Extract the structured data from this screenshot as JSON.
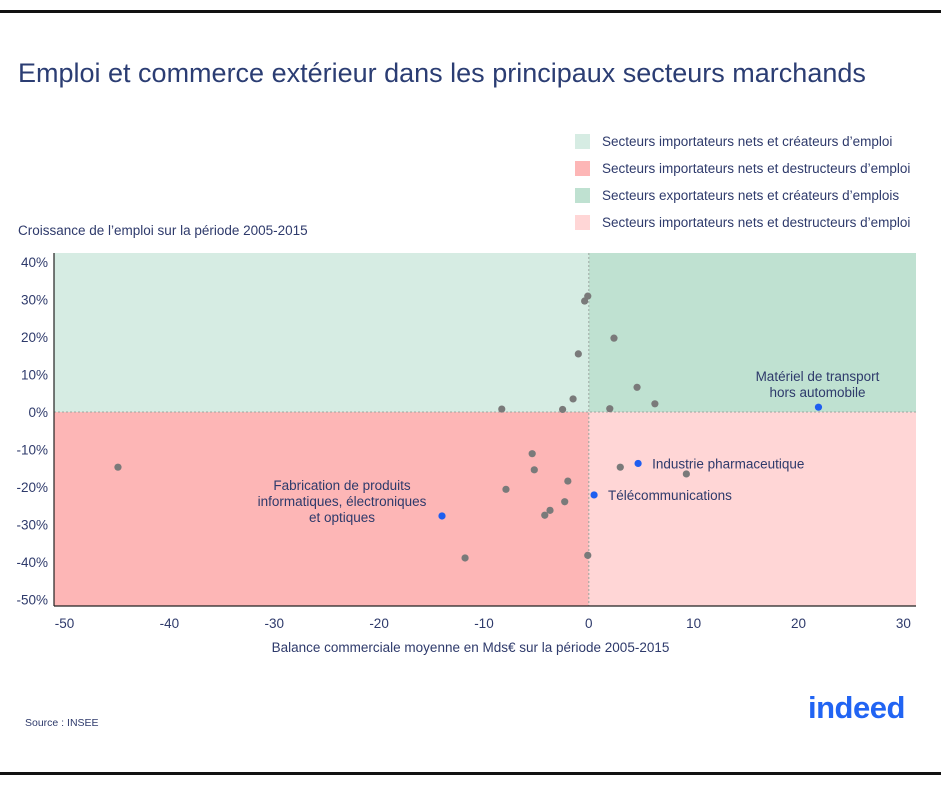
{
  "title": "Emploi et commerce extérieur dans les principaux secteurs marchands",
  "source": "Source : INSEE",
  "logo_text": "indeed",
  "chart_data": {
    "type": "scatter",
    "title": "Emploi et commerce extérieur dans les principaux secteurs marchands",
    "xlabel": "Balance commerciale moyenne en Mds€ sur la période 2005-2015",
    "ylabel": "Croissance de l’emploi sur la période 2005-2015",
    "xlim": [
      -51,
      31.2
    ],
    "ylim": [
      -51.7,
      42.4
    ],
    "x_ticks": [
      -50,
      -40,
      -30,
      -20,
      -10,
      0,
      10,
      20,
      30
    ],
    "x_tick_labels": [
      "-50",
      "-40",
      "-30",
      "-20",
      "-10",
      "0",
      "10",
      "20",
      "30"
    ],
    "y_ticks": [
      40,
      30,
      20,
      10,
      0,
      -10,
      -20,
      -30,
      -40,
      -50
    ],
    "y_tick_labels": [
      "40%",
      "30%",
      "20%",
      "10%",
      "0%",
      "-10%",
      "-20%",
      "-30%",
      "-40%",
      "-50%"
    ],
    "grid": false,
    "legend_position": "top-right",
    "legend": [
      {
        "label": "Secteurs importateurs nets et créateurs d’emploi",
        "color": "#d6ece3"
      },
      {
        "label": "Secteurs importateurs nets et destructeurs d’emploi",
        "color": "#fdb6b6"
      },
      {
        "label": "Secteurs exportateurs nets et créateurs d’emplois",
        "color": "#bfe1d1"
      },
      {
        "label": "Secteurs importateurs nets et destructeurs d’emploi",
        "color": "#ffd6d6"
      }
    ],
    "quadrant_colors": {
      "top_left": "#d6ece3",
      "top_right": "#bfe1d1",
      "bottom_left": "#fdb6b6",
      "bottom_right": "#ffd6d6"
    },
    "point_color": "#7a7a7a",
    "highlight_color": "#1f5ef0",
    "points": [
      {
        "x": -44.9,
        "y": -14.7
      },
      {
        "x": -8.3,
        "y": 0.8
      },
      {
        "x": -0.1,
        "y": 30.9
      },
      {
        "x": -0.4,
        "y": 29.6
      },
      {
        "x": 2.4,
        "y": 19.7
      },
      {
        "x": -1.0,
        "y": 15.5
      },
      {
        "x": 4.6,
        "y": 6.6
      },
      {
        "x": -1.5,
        "y": 3.5
      },
      {
        "x": 6.3,
        "y": 2.2
      },
      {
        "x": -2.5,
        "y": 0.7
      },
      {
        "x": 2.0,
        "y": 0.9
      },
      {
        "x": -5.4,
        "y": -11.1
      },
      {
        "x": -5.2,
        "y": -15.4
      },
      {
        "x": 3.0,
        "y": -14.7
      },
      {
        "x": -2.0,
        "y": -18.4
      },
      {
        "x": 9.3,
        "y": -16.5
      },
      {
        "x": -7.9,
        "y": -20.6
      },
      {
        "x": -2.3,
        "y": -23.9
      },
      {
        "x": -3.7,
        "y": -26.2
      },
      {
        "x": -4.2,
        "y": -27.5
      },
      {
        "x": -11.8,
        "y": -38.9
      },
      {
        "x": -0.1,
        "y": -38.2
      }
    ],
    "highlighted": [
      {
        "x": 21.9,
        "y": 1.3,
        "label": [
          "Matériel de transport",
          "hors automobile"
        ],
        "anchor": "above"
      },
      {
        "x": 4.7,
        "y": -13.7,
        "label": [
          "Industrie pharmaceutique"
        ],
        "anchor": "right"
      },
      {
        "x": 0.5,
        "y": -22.1,
        "label": [
          "Télécommunications"
        ],
        "anchor": "right"
      },
      {
        "x": -14.0,
        "y": -27.7,
        "label": [
          "Fabrication de produits",
          "informatiques, électroniques",
          "et optiques"
        ],
        "anchor": "left-above"
      }
    ]
  }
}
